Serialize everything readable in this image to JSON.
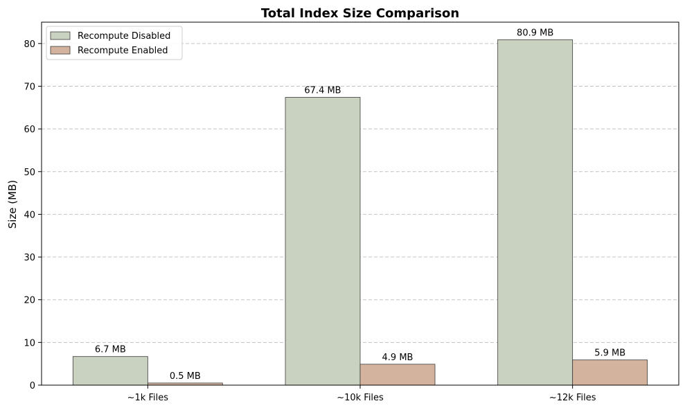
{
  "chart_data": {
    "type": "bar",
    "title": "Total Index Size Comparison",
    "xlabel": "",
    "ylabel": "Size (MB)",
    "categories": [
      "~1k Files",
      "~10k Files",
      "~12k Files"
    ],
    "series": [
      {
        "name": "Recompute Disabled",
        "values": [
          6.7,
          67.4,
          80.9
        ],
        "labels": [
          "6.7 MB",
          "67.4 MB",
          "80.9 MB"
        ],
        "color": "#c9d1c0"
      },
      {
        "name": "Recompute Enabled",
        "values": [
          0.5,
          4.9,
          5.9
        ],
        "labels": [
          "0.5 MB",
          "4.9 MB",
          "5.9 MB"
        ],
        "color": "#d3b39d"
      }
    ],
    "ylim": [
      0,
      85
    ],
    "yticks": [
      0,
      10,
      20,
      30,
      40,
      50,
      60,
      70,
      80
    ],
    "grid": "y-dashed",
    "legend_position": "top-left"
  }
}
